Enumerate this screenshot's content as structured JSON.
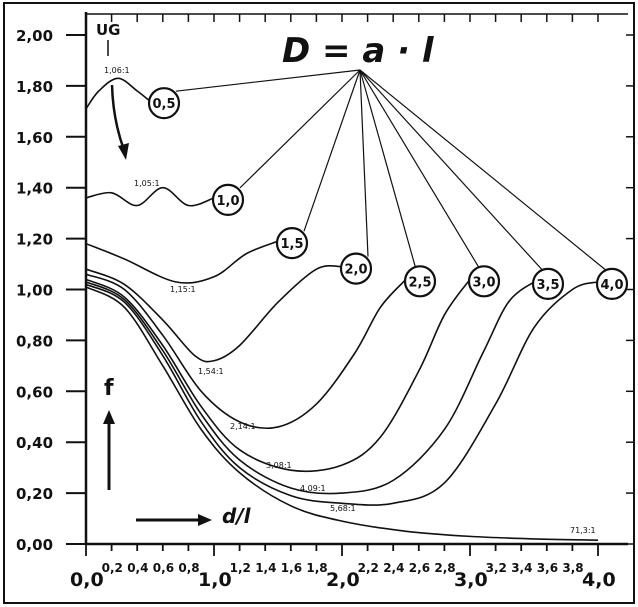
{
  "chart_data": {
    "type": "line",
    "title": "D = a · l",
    "ylabel": "f",
    "xlabel": "d/l",
    "ug_label": "UG",
    "xlim": [
      0,
      4.2
    ],
    "ylim": [
      0,
      2.05
    ],
    "x_ticks_major": [
      "0,0",
      "1,0",
      "2,0",
      "3,0",
      "4,0"
    ],
    "x_ticks_minor": [
      "0,2",
      "0,4",
      "0,6",
      "0,8",
      "1,2",
      "1,4",
      "1,6",
      "1,8",
      "2,2",
      "2,4",
      "2,6",
      "2,8",
      "3,2",
      "3,4",
      "3,6",
      "3,8"
    ],
    "y_ticks": [
      "0,00",
      "0,20",
      "0,40",
      "0,60",
      "0,80",
      "1,00",
      "1,20",
      "1,40",
      "1,60",
      "1,80",
      "2,00"
    ],
    "series": [
      {
        "name": "0,5",
        "ratio": "1,06:1",
        "points": [
          [
            0,
            1.71
          ],
          [
            0.1,
            1.78
          ],
          [
            0.25,
            1.83
          ],
          [
            0.4,
            1.78
          ],
          [
            0.5,
            1.74
          ]
        ]
      },
      {
        "name": "1,0",
        "ratio": "1,05:1",
        "points": [
          [
            0,
            1.36
          ],
          [
            0.2,
            1.38
          ],
          [
            0.4,
            1.33
          ],
          [
            0.6,
            1.4
          ],
          [
            0.8,
            1.33
          ],
          [
            1.0,
            1.36
          ]
        ]
      },
      {
        "name": "1,5",
        "ratio": "1,15:1",
        "points": [
          [
            0,
            1.18
          ],
          [
            0.3,
            1.12
          ],
          [
            0.7,
            1.03
          ],
          [
            1.0,
            1.05
          ],
          [
            1.25,
            1.14
          ],
          [
            1.5,
            1.19
          ]
        ]
      },
      {
        "name": "2,0",
        "ratio": "1,54:1",
        "points": [
          [
            0,
            1.08
          ],
          [
            0.3,
            1.02
          ],
          [
            0.6,
            0.88
          ],
          [
            0.85,
            0.74
          ],
          [
            1.0,
            0.72
          ],
          [
            1.2,
            0.78
          ],
          [
            1.5,
            0.95
          ],
          [
            1.8,
            1.08
          ],
          [
            2.0,
            1.09
          ]
        ]
      },
      {
        "name": "2,5",
        "ratio": "2,14:1",
        "points": [
          [
            0,
            1.06
          ],
          [
            0.3,
            1.0
          ],
          [
            0.6,
            0.82
          ],
          [
            0.9,
            0.6
          ],
          [
            1.2,
            0.48
          ],
          [
            1.5,
            0.46
          ],
          [
            1.8,
            0.55
          ],
          [
            2.1,
            0.75
          ],
          [
            2.3,
            0.93
          ],
          [
            2.5,
            1.04
          ]
        ]
      },
      {
        "name": "3,0",
        "ratio": "3,08:1",
        "points": [
          [
            0,
            1.04
          ],
          [
            0.3,
            0.97
          ],
          [
            0.6,
            0.78
          ],
          [
            0.9,
            0.54
          ],
          [
            1.2,
            0.37
          ],
          [
            1.6,
            0.29
          ],
          [
            2.0,
            0.31
          ],
          [
            2.3,
            0.42
          ],
          [
            2.6,
            0.68
          ],
          [
            2.8,
            0.9
          ],
          [
            3.0,
            1.04
          ]
        ]
      },
      {
        "name": "3,5",
        "ratio": "4,09:1",
        "points": [
          [
            0,
            1.03
          ],
          [
            0.3,
            0.96
          ],
          [
            0.6,
            0.76
          ],
          [
            0.9,
            0.51
          ],
          [
            1.2,
            0.33
          ],
          [
            1.6,
            0.22
          ],
          [
            2.0,
            0.2
          ],
          [
            2.4,
            0.25
          ],
          [
            2.8,
            0.45
          ],
          [
            3.1,
            0.75
          ],
          [
            3.3,
            0.95
          ],
          [
            3.5,
            1.03
          ]
        ]
      },
      {
        "name": "4,0",
        "ratio": "5,68:1",
        "points": [
          [
            0,
            1.02
          ],
          [
            0.3,
            0.95
          ],
          [
            0.6,
            0.74
          ],
          [
            0.9,
            0.48
          ],
          [
            1.2,
            0.3
          ],
          [
            1.6,
            0.19
          ],
          [
            2.0,
            0.16
          ],
          [
            2.4,
            0.16
          ],
          [
            2.8,
            0.24
          ],
          [
            3.2,
            0.55
          ],
          [
            3.5,
            0.85
          ],
          [
            3.8,
            1.0
          ],
          [
            4.0,
            1.03
          ]
        ]
      },
      {
        "name": "UG",
        "ratio": "71,3:1",
        "points": [
          [
            0,
            1.01
          ],
          [
            0.3,
            0.93
          ],
          [
            0.6,
            0.7
          ],
          [
            0.9,
            0.45
          ],
          [
            1.2,
            0.28
          ],
          [
            1.6,
            0.15
          ],
          [
            2.0,
            0.09
          ],
          [
            2.5,
            0.05
          ],
          [
            3.0,
            0.03
          ],
          [
            3.5,
            0.02
          ],
          [
            4.0,
            0.015
          ]
        ]
      }
    ],
    "grid": false
  }
}
